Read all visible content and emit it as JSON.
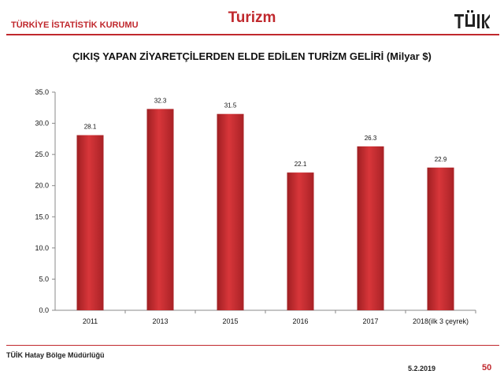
{
  "header": {
    "org": "TÜRKİYE İSTATİSTİK KURUMU",
    "title": "Turizm",
    "logo_icon": "tuik-logo-icon",
    "accent_color": "#c0282d"
  },
  "chart_data": {
    "type": "bar",
    "title": "ÇIKIŞ YAPAN ZİYARETÇİLERDEN ELDE EDİLEN TURİZM GELİRİ (Milyar $)",
    "categories": [
      "2011",
      "2013",
      "2015",
      "2016",
      "2017",
      "2018(ilk 3 çeyrek)"
    ],
    "values": [
      28.1,
      32.3,
      31.5,
      22.1,
      26.3,
      22.9
    ],
    "value_labels": [
      "28.1",
      "32.3",
      "31.5",
      "22.1",
      "26.3",
      "22.9"
    ],
    "ylim": [
      0,
      35
    ],
    "yticks": [
      "0.0",
      "5.0",
      "10.0",
      "15.0",
      "20.0",
      "25.0",
      "30.0",
      "35.0"
    ],
    "grid": false,
    "legend": "none",
    "bar_color": "#c8292e"
  },
  "footer": {
    "org": "TÜİK Hatay Bölge Müdürlüğü",
    "date": "5.2.2019",
    "page": "50"
  }
}
